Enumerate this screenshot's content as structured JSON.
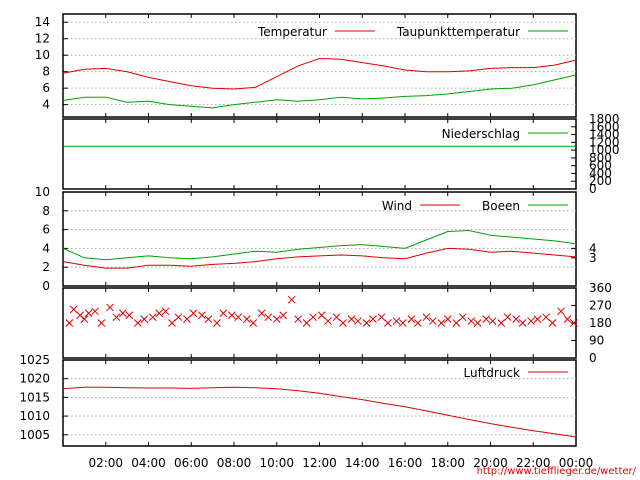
{
  "footer_url": "http://www.tiefflieger.de/wetter/",
  "x_axis": {
    "domain": [
      0,
      24
    ],
    "tick_labels": [
      "02:00",
      "04:00",
      "06:00",
      "08:00",
      "10:00",
      "12:00",
      "14:00",
      "16:00",
      "18:00",
      "20:00",
      "22:00",
      "00:00"
    ]
  },
  "chart_data": [
    {
      "type": "line",
      "ylim": [
        2.5,
        15
      ],
      "y_ticks": [
        4,
        6,
        8,
        10,
        12,
        14
      ],
      "grid": true,
      "legend_position": "top-right",
      "series": [
        {
          "name": "Temperatur",
          "color": "#e00000",
          "x": [
            0,
            1,
            2,
            3,
            4,
            5,
            6,
            7,
            8,
            9,
            10,
            11,
            12,
            13,
            14,
            15,
            16,
            17,
            18,
            19,
            20,
            21,
            22,
            23,
            24
          ],
          "values": [
            7.8,
            8.3,
            8.4,
            8.0,
            7.3,
            6.8,
            6.3,
            6.0,
            5.9,
            6.1,
            7.4,
            8.7,
            9.6,
            9.5,
            9.1,
            8.7,
            8.2,
            8.0,
            8.0,
            8.1,
            8.4,
            8.5,
            8.5,
            8.8,
            9.4
          ]
        },
        {
          "name": "Taupunkttemperatur",
          "color": "#00a000",
          "x": [
            0,
            1,
            2,
            3,
            4,
            5,
            6,
            7,
            8,
            9,
            10,
            11,
            12,
            13,
            14,
            15,
            16,
            17,
            18,
            19,
            20,
            21,
            22,
            23,
            24
          ],
          "values": [
            4.5,
            4.9,
            4.9,
            4.3,
            4.4,
            4.0,
            3.8,
            3.6,
            4.0,
            4.3,
            4.6,
            4.4,
            4.6,
            4.9,
            4.7,
            4.8,
            5.0,
            5.1,
            5.3,
            5.6,
            5.9,
            6.0,
            6.4,
            7.0,
            7.6
          ]
        }
      ]
    },
    {
      "type": "line",
      "ylim": [
        0,
        1800
      ],
      "y_ticks": [
        0,
        200,
        400,
        600,
        800,
        1000,
        1200,
        1400,
        1600,
        1800
      ],
      "grid": false,
      "legend_position": "top-right",
      "series": [
        {
          "name": "Niederschlag",
          "color": "#00a000",
          "x": [
            0,
            24
          ],
          "values": [
            1100,
            1100
          ]
        }
      ]
    },
    {
      "type": "line",
      "ylim": [
        0,
        10
      ],
      "y_ticks": [
        0,
        2,
        4,
        6,
        8,
        10
      ],
      "right_ticks": [
        3,
        4
      ],
      "grid": true,
      "legend_position": "top-right",
      "series": [
        {
          "name": "Wind",
          "color": "#e00000",
          "x": [
            0,
            1,
            2,
            3,
            4,
            5,
            6,
            7,
            8,
            9,
            10,
            11,
            12,
            13,
            14,
            15,
            16,
            17,
            18,
            19,
            20,
            21,
            22,
            23,
            24
          ],
          "values": [
            2.6,
            2.2,
            1.9,
            1.9,
            2.2,
            2.2,
            2.1,
            2.3,
            2.4,
            2.6,
            2.9,
            3.1,
            3.2,
            3.3,
            3.2,
            3.0,
            2.9,
            3.5,
            4.0,
            3.9,
            3.6,
            3.7,
            3.5,
            3.3,
            3.1
          ]
        },
        {
          "name": "Boeen",
          "color": "#00a000",
          "x": [
            0,
            1,
            2,
            3,
            4,
            5,
            6,
            7,
            8,
            9,
            10,
            11,
            12,
            13,
            14,
            15,
            16,
            17,
            18,
            19,
            20,
            21,
            22,
            23,
            24
          ],
          "values": [
            4.0,
            3.0,
            2.8,
            3.0,
            3.2,
            3.0,
            2.9,
            3.1,
            3.4,
            3.7,
            3.6,
            3.9,
            4.1,
            4.3,
            4.4,
            4.2,
            4.0,
            4.9,
            5.8,
            5.9,
            5.4,
            5.2,
            5.0,
            4.8,
            4.5
          ]
        }
      ]
    },
    {
      "type": "scatter",
      "ylim": [
        0,
        360
      ],
      "y_ticks": [
        0,
        90,
        180,
        270,
        360
      ],
      "grid": false,
      "marker": "x",
      "series": [
        {
          "color": "#e00000",
          "x": [
            0.3,
            0.5,
            0.8,
            1.0,
            1.2,
            1.5,
            1.8,
            2.2,
            2.5,
            2.8,
            3.1,
            3.5,
            3.8,
            4.2,
            4.5,
            4.8,
            5.1,
            5.4,
            5.8,
            6.1,
            6.5,
            6.8,
            7.2,
            7.5,
            7.9,
            8.2,
            8.6,
            8.9,
            9.3,
            9.6,
            10.0,
            10.3,
            10.7,
            11.0,
            11.4,
            11.7,
            12.1,
            12.4,
            12.8,
            13.1,
            13.5,
            13.8,
            14.2,
            14.5,
            14.9,
            15.2,
            15.6,
            15.9,
            16.3,
            16.6,
            17.0,
            17.3,
            17.7,
            18.0,
            18.4,
            18.7,
            19.1,
            19.4,
            19.8,
            20.1,
            20.5,
            20.8,
            21.2,
            21.5,
            21.9,
            22.2,
            22.6,
            22.9,
            23.3,
            23.6,
            23.9
          ],
          "values": [
            180,
            250,
            220,
            200,
            230,
            240,
            180,
            260,
            210,
            230,
            220,
            180,
            200,
            210,
            230,
            240,
            180,
            210,
            200,
            230,
            220,
            200,
            180,
            230,
            220,
            210,
            200,
            180,
            230,
            210,
            200,
            220,
            300,
            200,
            180,
            210,
            220,
            190,
            210,
            180,
            200,
            190,
            180,
            200,
            210,
            180,
            190,
            180,
            200,
            180,
            210,
            190,
            180,
            200,
            180,
            210,
            190,
            180,
            200,
            190,
            180,
            210,
            200,
            180,
            190,
            200,
            210,
            180,
            240,
            200,
            180
          ]
        }
      ]
    },
    {
      "type": "line",
      "ylim": [
        1002,
        1025
      ],
      "y_ticks": [
        1005,
        1010,
        1015,
        1020,
        1025
      ],
      "grid": true,
      "legend_position": "top-right",
      "series": [
        {
          "name": "Luftdruck",
          "color": "#e00000",
          "x": [
            0,
            1,
            2,
            3,
            4,
            5,
            6,
            7,
            8,
            9,
            10,
            11,
            12,
            13,
            14,
            15,
            16,
            17,
            18,
            19,
            20,
            21,
            22,
            23,
            24
          ],
          "values": [
            1017.3,
            1017.7,
            1017.7,
            1017.6,
            1017.5,
            1017.5,
            1017.4,
            1017.6,
            1017.7,
            1017.6,
            1017.3,
            1016.8,
            1016.1,
            1015.2,
            1014.4,
            1013.4,
            1012.5,
            1011.4,
            1010.2,
            1009.1,
            1008.0,
            1007.0,
            1006.1,
            1005.3,
            1004.4
          ]
        }
      ]
    }
  ]
}
